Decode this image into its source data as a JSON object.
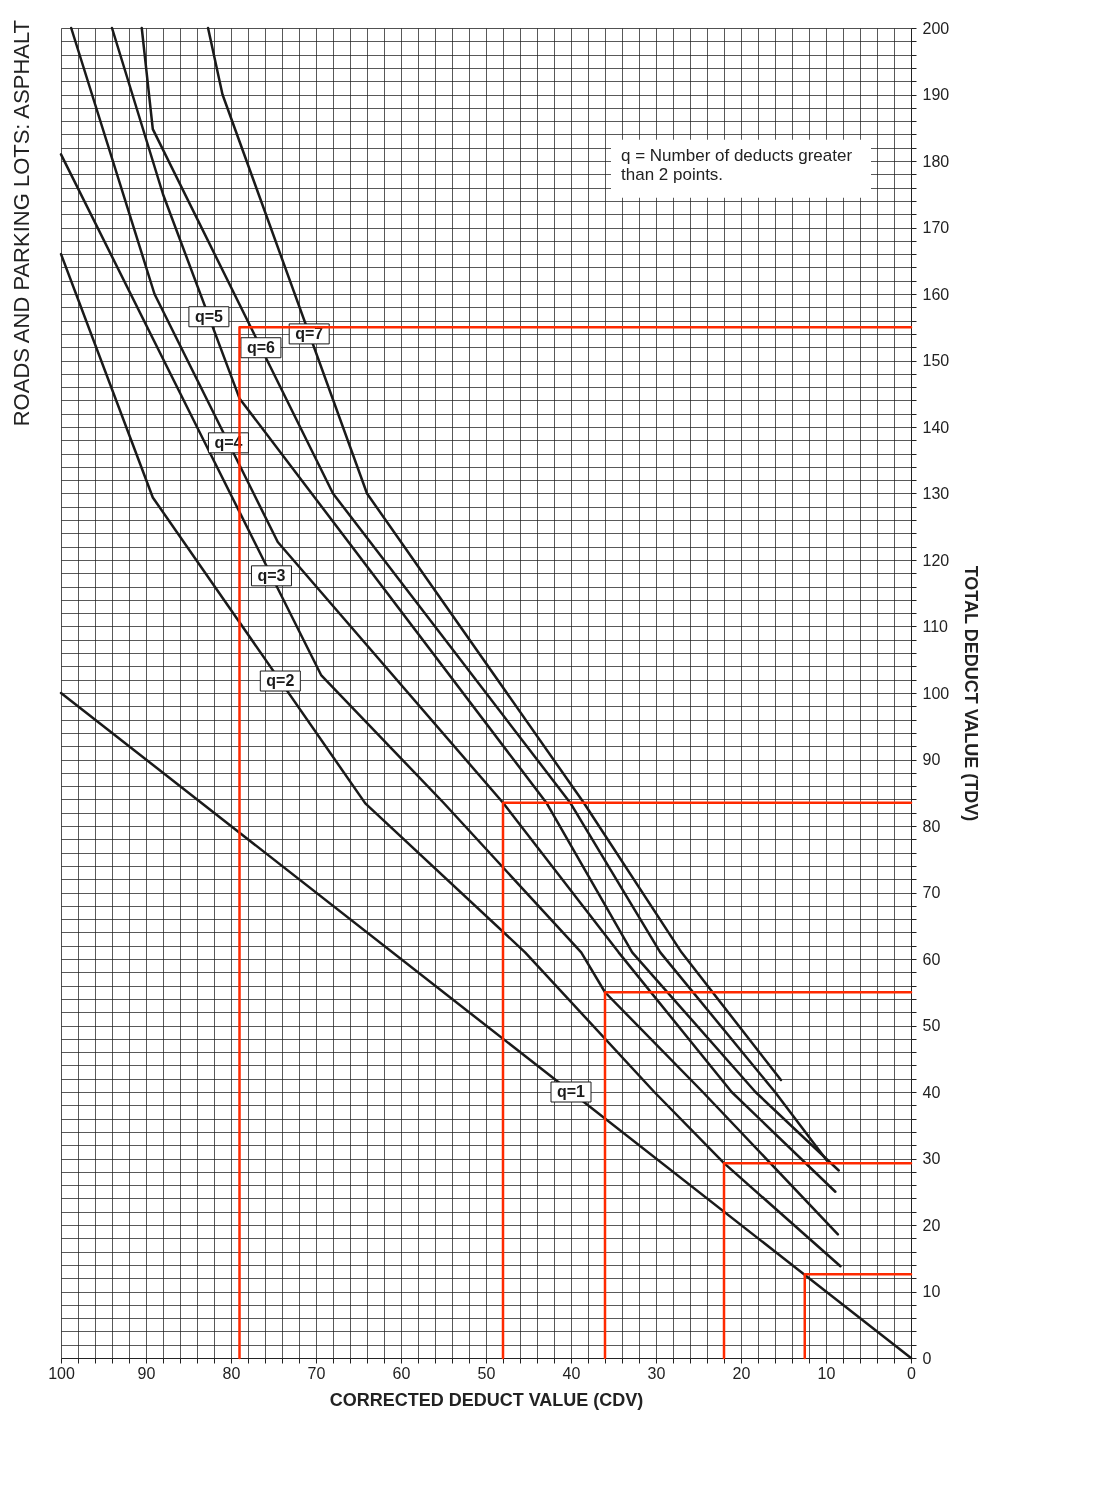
{
  "chart_data": {
    "type": "line",
    "title": "ROADS AND PARKING LOTS:  ASPHALT",
    "xlabel": "CORRECTED DEDUCT VALUE (CDV)",
    "ylabel": "TOTAL DEDUCT VALUE (TDV)",
    "xlim": [
      100,
      0
    ],
    "ylim": [
      0,
      200
    ],
    "xticks": [
      0,
      {
        "value": 2,
        "label": null
      },
      {
        "value": 4,
        "label": null
      },
      {
        "value": 6,
        "label": null
      },
      {
        "value": 8,
        "label": null
      },
      10,
      {
        "value": 12,
        "label": null
      },
      {
        "value": 14,
        "label": null
      },
      {
        "value": 16,
        "label": null
      },
      {
        "value": 18,
        "label": null
      },
      20,
      {
        "value": 22,
        "label": null
      },
      {
        "value": 24,
        "label": null
      },
      {
        "value": 26,
        "label": null
      },
      {
        "value": 28,
        "label": null
      },
      30,
      {
        "value": 32,
        "label": null
      },
      {
        "value": 34,
        "label": null
      },
      {
        "value": 36,
        "label": null
      },
      {
        "value": 38,
        "label": null
      },
      40,
      {
        "value": 42,
        "label": null
      },
      {
        "value": 44,
        "label": null
      },
      {
        "value": 46,
        "label": null
      },
      {
        "value": 48,
        "label": null
      },
      50,
      {
        "value": 52,
        "label": null
      },
      {
        "value": 54,
        "label": null
      },
      {
        "value": 56,
        "label": null
      },
      {
        "value": 58,
        "label": null
      },
      60,
      {
        "value": 62,
        "label": null
      },
      {
        "value": 64,
        "label": null
      },
      {
        "value": 66,
        "label": null
      },
      {
        "value": 68,
        "label": null
      },
      70,
      {
        "value": 72,
        "label": null
      },
      {
        "value": 74,
        "label": null
      },
      {
        "value": 76,
        "label": null
      },
      {
        "value": 78,
        "label": null
      },
      80,
      {
        "value": 82,
        "label": null
      },
      {
        "value": 84,
        "label": null
      },
      {
        "value": 86,
        "label": null
      },
      {
        "value": 88,
        "label": null
      },
      90,
      {
        "value": 92,
        "label": null
      },
      {
        "value": 94,
        "label": null
      },
      {
        "value": 96,
        "label": null
      },
      {
        "value": 98,
        "label": null
      },
      100
    ],
    "yticks": [
      0,
      {
        "value": 2,
        "label": null
      },
      {
        "value": 4,
        "label": null
      },
      {
        "value": 6,
        "label": null
      },
      {
        "value": 8,
        "label": null
      },
      10,
      {
        "value": 12,
        "label": null
      },
      {
        "value": 14,
        "label": null
      },
      {
        "value": 16,
        "label": null
      },
      {
        "value": 18,
        "label": null
      },
      20,
      {
        "value": 22,
        "label": null
      },
      {
        "value": 24,
        "label": null
      },
      {
        "value": 26,
        "label": null
      },
      {
        "value": 28,
        "label": null
      },
      30,
      {
        "value": 32,
        "label": null
      },
      {
        "value": 34,
        "label": null
      },
      {
        "value": 36,
        "label": null
      },
      {
        "value": 38,
        "label": null
      },
      40,
      {
        "value": 42,
        "label": null
      },
      {
        "value": 44,
        "label": null
      },
      {
        "value": 46,
        "label": null
      },
      {
        "value": 48,
        "label": null
      },
      50,
      {
        "value": 52,
        "label": null
      },
      {
        "value": 54,
        "label": null
      },
      {
        "value": 56,
        "label": null
      },
      {
        "value": 58,
        "label": null
      },
      60,
      {
        "value": 62,
        "label": null
      },
      {
        "value": 64,
        "label": null
      },
      {
        "value": 66,
        "label": null
      },
      {
        "value": 68,
        "label": null
      },
      70,
      {
        "value": 72,
        "label": null
      },
      {
        "value": 74,
        "label": null
      },
      {
        "value": 76,
        "label": null
      },
      {
        "value": 78,
        "label": null
      },
      80,
      {
        "value": 82,
        "label": null
      },
      {
        "value": 84,
        "label": null
      },
      {
        "value": 86,
        "label": null
      },
      {
        "value": 88,
        "label": null
      },
      90,
      {
        "value": 92,
        "label": null
      },
      {
        "value": 94,
        "label": null
      },
      {
        "value": 96,
        "label": null
      },
      {
        "value": 98,
        "label": null
      },
      100,
      {
        "value": 102,
        "label": null
      },
      {
        "value": 104,
        "label": null
      },
      {
        "value": 106,
        "label": null
      },
      {
        "value": 108,
        "label": null
      },
      110,
      {
        "value": 112,
        "label": null
      },
      {
        "value": 114,
        "label": null
      },
      {
        "value": 116,
        "label": null
      },
      {
        "value": 118,
        "label": null
      },
      120,
      {
        "value": 122,
        "label": null
      },
      {
        "value": 124,
        "label": null
      },
      {
        "value": 126,
        "label": null
      },
      {
        "value": 128,
        "label": null
      },
      130,
      {
        "value": 132,
        "label": null
      },
      {
        "value": 134,
        "label": null
      },
      {
        "value": 136,
        "label": null
      },
      {
        "value": 138,
        "label": null
      },
      140,
      {
        "value": 142,
        "label": null
      },
      {
        "value": 144,
        "label": null
      },
      {
        "value": 146,
        "label": null
      },
      {
        "value": 148,
        "label": null
      },
      150,
      {
        "value": 152,
        "label": null
      },
      {
        "value": 154,
        "label": null
      },
      {
        "value": 156,
        "label": null
      },
      {
        "value": 158,
        "label": null
      },
      160,
      {
        "value": 162,
        "label": null
      },
      {
        "value": 164,
        "label": null
      },
      {
        "value": 166,
        "label": null
      },
      {
        "value": 168,
        "label": null
      },
      170,
      {
        "value": 172,
        "label": null
      },
      {
        "value": 174,
        "label": null
      },
      {
        "value": 176,
        "label": null
      },
      {
        "value": 178,
        "label": null
      },
      180,
      {
        "value": 182,
        "label": null
      },
      {
        "value": 184,
        "label": null
      },
      {
        "value": 186,
        "label": null
      },
      {
        "value": 188,
        "label": null
      },
      190,
      {
        "value": 192,
        "label": null
      },
      {
        "value": 194,
        "label": null
      },
      {
        "value": 196,
        "label": null
      },
      {
        "value": 198,
        "label": null
      },
      200
    ],
    "grid": true,
    "annotations": [
      "q = Number of deducts greater\nthan 2 points."
    ],
    "series": [
      {
        "name": "q=1",
        "color": "#1a1a1a",
        "x": [
          0,
          100
        ],
        "values": [
          0,
          100
        ]
      },
      {
        "name": "q=2",
        "color": "#1a1a1a",
        "x": [
          8.3,
          22,
          30.2,
          45.4,
          64.2,
          89.2,
          100
        ],
        "values": [
          13.8,
          29.3,
          40,
          61,
          83.4,
          129.4,
          166
        ]
      },
      {
        "name": "q=3",
        "color": "#1a1a1a",
        "x": [
          8.6,
          24.5,
          36,
          38.8,
          55,
          69.4,
          84,
          100
        ],
        "values": [
          18.6,
          40,
          55,
          61,
          83.5,
          102.7,
          140,
          181
        ]
      },
      {
        "name": "q=4",
        "color": "#1a1a1a",
        "x": [
          8.9,
          21.1,
          34.4,
          48,
          74.5,
          89,
          98.8
        ],
        "values": [
          25,
          40,
          61,
          83.5,
          122.7,
          160,
          200
        ]
      },
      {
        "name": "q=5",
        "color": "#1a1a1a",
        "x": [
          8.5,
          18.3,
          32.8,
          42.9,
          79,
          88,
          94
        ],
        "values": [
          28.2,
          40,
          61,
          83.5,
          144.3,
          175,
          200
        ]
      },
      {
        "name": "q=6",
        "color": "#1a1a1a",
        "x": [
          9.9,
          16,
          29.5,
          40.1,
          68,
          89.2,
          90.5
        ],
        "values": [
          29.7,
          40,
          61,
          83.5,
          130,
          184.8,
          200
        ]
      },
      {
        "name": "q=7",
        "color": "#1a1a1a",
        "x": [
          15.3,
          27,
          38.5,
          64,
          81,
          82.7
        ],
        "values": [
          41.8,
          61,
          83.5,
          130,
          190,
          200
        ]
      },
      {
        "color": "#ff2a00",
        "x": [
          0,
          79,
          79
        ],
        "values": [
          155,
          155,
          0
        ]
      },
      {
        "color": "#ff2a00",
        "x": [
          0,
          48,
          48
        ],
        "values": [
          83.5,
          83.5,
          0
        ]
      },
      {
        "color": "#ff2a00",
        "x": [
          0,
          36,
          36
        ],
        "values": [
          55,
          55,
          0
        ]
      },
      {
        "color": "#ff2a00",
        "x": [
          0,
          22,
          22
        ],
        "values": [
          29.3,
          29.3,
          0
        ]
      },
      {
        "color": "#ff2a00",
        "x": [
          0,
          12.5,
          12.5
        ],
        "values": [
          12.6,
          12.6,
          0
        ]
      }
    ]
  }
}
